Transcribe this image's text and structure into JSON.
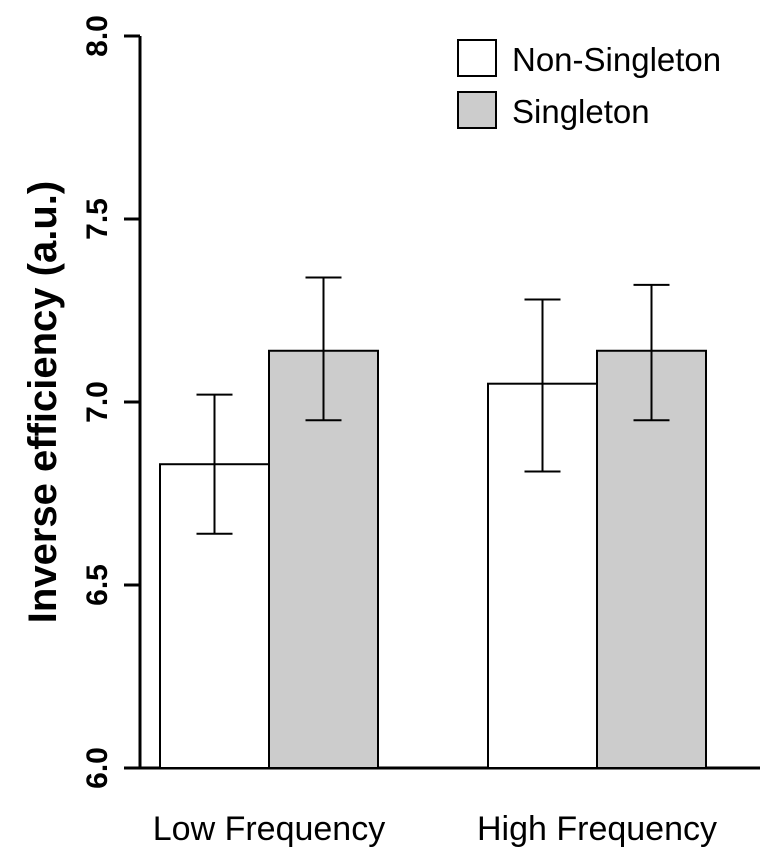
{
  "chart_data": {
    "type": "bar",
    "ylabel": "Inverse efficiency (a.u.)",
    "ylim": [
      6.0,
      8.0
    ],
    "yticks": [
      "6.0",
      "6.5",
      "7.0",
      "7.5",
      "8.0"
    ],
    "categories": [
      "Low Frequency",
      "High Frequency"
    ],
    "series": [
      {
        "name": "Non-Singleton",
        "color": "#ffffff",
        "values": [
          6.83,
          7.05
        ],
        "error_low": [
          6.64,
          6.81
        ],
        "error_high": [
          7.02,
          7.28
        ]
      },
      {
        "name": "Singleton",
        "color": "#cccccc",
        "values": [
          7.14,
          7.14
        ],
        "error_low": [
          6.95,
          6.95
        ],
        "error_high": [
          7.34,
          7.32
        ]
      }
    ],
    "legend_position": "top-right",
    "grid": false
  }
}
